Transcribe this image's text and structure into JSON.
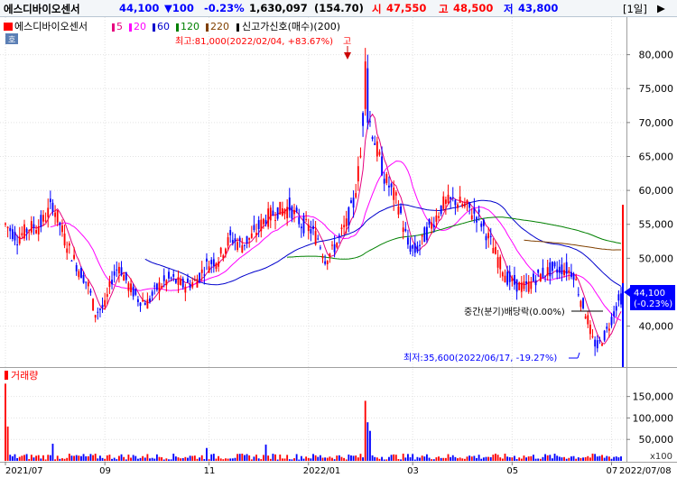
{
  "header": {
    "name": "에스디바이오센서",
    "price": "44,100",
    "change": "▼100",
    "change_pct": "-0.23%",
    "volume": "1,630,097",
    "volume_pct": "(154.70)",
    "open_label": "시",
    "open": "47,550",
    "high_label": "고",
    "high": "48,500",
    "low_label": "저",
    "low": "43,800",
    "period": "[1일]"
  },
  "colors": {
    "up": "#ff0000",
    "down": "#0000ff",
    "ma5": "#e6007e",
    "ma20": "#ff00ff",
    "ma60": "#0000cc",
    "ma120": "#008000",
    "ma220": "#804000",
    "accent": "#0000ff"
  },
  "legend": {
    "name": "에스디바이오센서",
    "ma_items": [
      {
        "label": "5",
        "color": "#e6007e"
      },
      {
        "label": "20",
        "color": "#ff00ff"
      },
      {
        "label": "60",
        "color": "#0000cc"
      },
      {
        "label": "120",
        "color": "#008000"
      },
      {
        "label": "220",
        "color": "#804000"
      }
    ],
    "signal": "신고가신호(매수)(200)",
    "volume_label": "거래량",
    "small_button": "호"
  },
  "annotations": {
    "high": "최고:81,000(2022/02/04, +83.67%)",
    "high_tag": "고",
    "low": "최저:35,600(2022/06/17, -19.27%)",
    "dividend": "중간(분기)배당락(0.00%)"
  },
  "price_tag": {
    "price": "44,100",
    "pct": "(-0.23%)"
  },
  "chart_data": {
    "type": "candlestick",
    "y_ticks": [
      40000,
      45000,
      50000,
      55000,
      60000,
      65000,
      70000,
      75000,
      80000
    ],
    "y_tick_labels": [
      "40,000",
      "45,000",
      "50,000",
      "55,000",
      "60,000",
      "65,000",
      "70,000",
      "75,000",
      "80,000"
    ],
    "ylim": [
      34500,
      85000
    ],
    "x_ticks": [
      {
        "label": "2021/07",
        "i": 0
      },
      {
        "label": "09",
        "i": 42
      },
      {
        "label": "11",
        "i": 86
      },
      {
        "label": "2022/01",
        "i": 128
      },
      {
        "label": "03",
        "i": 172
      },
      {
        "label": "05",
        "i": 214
      },
      {
        "label": "07",
        "i": 256
      }
    ],
    "last_label": "2022/07/08",
    "n_bars": 261,
    "price_anchors": [
      [
        0,
        55000
      ],
      [
        5,
        53000
      ],
      [
        10,
        54500
      ],
      [
        15,
        55000
      ],
      [
        20,
        58000
      ],
      [
        25,
        53000
      ],
      [
        30,
        49000
      ],
      [
        35,
        46000
      ],
      [
        38,
        42000
      ],
      [
        42,
        43000
      ],
      [
        45,
        47000
      ],
      [
        48,
        49000
      ],
      [
        52,
        46000
      ],
      [
        56,
        44000
      ],
      [
        60,
        43500
      ],
      [
        65,
        46000
      ],
      [
        70,
        47000
      ],
      [
        75,
        46000
      ],
      [
        80,
        46500
      ],
      [
        85,
        49000
      ],
      [
        90,
        50000
      ],
      [
        95,
        53000
      ],
      [
        100,
        52000
      ],
      [
        105,
        53500
      ],
      [
        110,
        56000
      ],
      [
        115,
        57000
      ],
      [
        120,
        57500
      ],
      [
        125,
        55000
      ],
      [
        128,
        54500
      ],
      [
        132,
        53000
      ],
      [
        135,
        50000
      ],
      [
        138,
        51000
      ],
      [
        141,
        53000
      ],
      [
        144,
        55000
      ],
      [
        147,
        58000
      ],
      [
        150,
        65000
      ],
      [
        152,
        76000
      ],
      [
        154,
        70000
      ],
      [
        157,
        66000
      ],
      [
        160,
        62000
      ],
      [
        163,
        60000
      ],
      [
        166,
        58000
      ],
      [
        168,
        55000
      ],
      [
        170,
        52000
      ],
      [
        173,
        51000
      ],
      [
        176,
        52500
      ],
      [
        180,
        55000
      ],
      [
        185,
        58000
      ],
      [
        190,
        58500
      ],
      [
        195,
        57500
      ],
      [
        200,
        56000
      ],
      [
        204,
        53000
      ],
      [
        208,
        50000
      ],
      [
        212,
        47000
      ],
      [
        216,
        46000
      ],
      [
        220,
        45800
      ],
      [
        224,
        47000
      ],
      [
        228,
        48000
      ],
      [
        232,
        48300
      ],
      [
        236,
        48500
      ],
      [
        240,
        47800
      ],
      [
        243,
        44000
      ],
      [
        246,
        41000
      ],
      [
        248,
        38000
      ],
      [
        250,
        37000
      ],
      [
        253,
        38500
      ],
      [
        256,
        41000
      ],
      [
        258,
        43000
      ],
      [
        260,
        44100
      ]
    ],
    "spikes": {
      "152": {
        "o": 72000,
        "c": 79000,
        "h": 81000,
        "l": 71000
      },
      "153": {
        "o": 78000,
        "c": 70000,
        "h": 80000,
        "l": 69000
      },
      "249": {
        "o": 38000,
        "c": 37000,
        "h": 38500,
        "l": 35600
      }
    },
    "vol_ticks": [
      50000,
      100000,
      150000
    ],
    "vol_tick_labels": [
      "50,000",
      "100,000",
      "150,000"
    ],
    "vol_unit": "x100",
    "vol_max": 185000,
    "vol_spikes": {
      "0": 180000,
      "1": 80000,
      "20": 40000,
      "85": 30000,
      "152": 140000,
      "153": 90000,
      "154": 70000,
      "110": 38000
    }
  }
}
